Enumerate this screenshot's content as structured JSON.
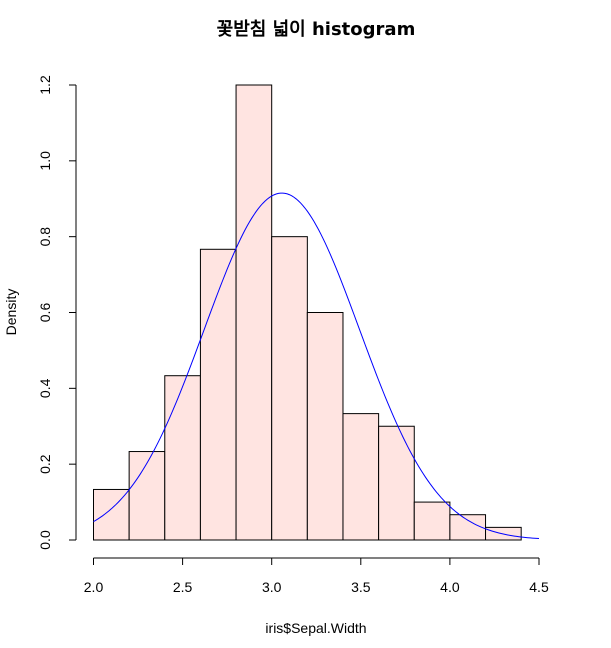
{
  "chart_data": {
    "type": "bar",
    "title": "꽃받침 넓이 histogram",
    "xlabel": "iris$Sepal.Width",
    "ylabel": "Density",
    "xlim": [
      2.0,
      4.5
    ],
    "ylim": [
      0,
      1.2
    ],
    "x_ticks": [
      "2.0",
      "2.5",
      "3.0",
      "3.5",
      "4.0",
      "4.5"
    ],
    "y_ticks": [
      "0.0",
      "0.2",
      "0.4",
      "0.6",
      "0.8",
      "1.0",
      "1.2"
    ],
    "bins": [
      {
        "from": 2.0,
        "to": 2.2,
        "density": 0.1333
      },
      {
        "from": 2.2,
        "to": 2.4,
        "density": 0.2333
      },
      {
        "from": 2.4,
        "to": 2.6,
        "density": 0.4333
      },
      {
        "from": 2.6,
        "to": 2.8,
        "density": 0.7667
      },
      {
        "from": 2.8,
        "to": 3.0,
        "density": 1.2
      },
      {
        "from": 3.0,
        "to": 3.2,
        "density": 0.8
      },
      {
        "from": 3.2,
        "to": 3.4,
        "density": 0.6
      },
      {
        "from": 3.4,
        "to": 3.6,
        "density": 0.3333
      },
      {
        "from": 3.6,
        "to": 3.8,
        "density": 0.3
      },
      {
        "from": 3.8,
        "to": 4.0,
        "density": 0.1
      },
      {
        "from": 4.0,
        "to": 4.2,
        "density": 0.0667
      },
      {
        "from": 4.2,
        "to": 4.4,
        "density": 0.0333
      }
    ],
    "density_curve": {
      "distribution": "normal",
      "mean": 3.057,
      "sd": 0.436,
      "x_range": [
        2.0,
        4.5
      ],
      "color": "#0000ff"
    },
    "bar_fill": "#ffe4e1",
    "bar_stroke": "#000000",
    "grid": false
  }
}
